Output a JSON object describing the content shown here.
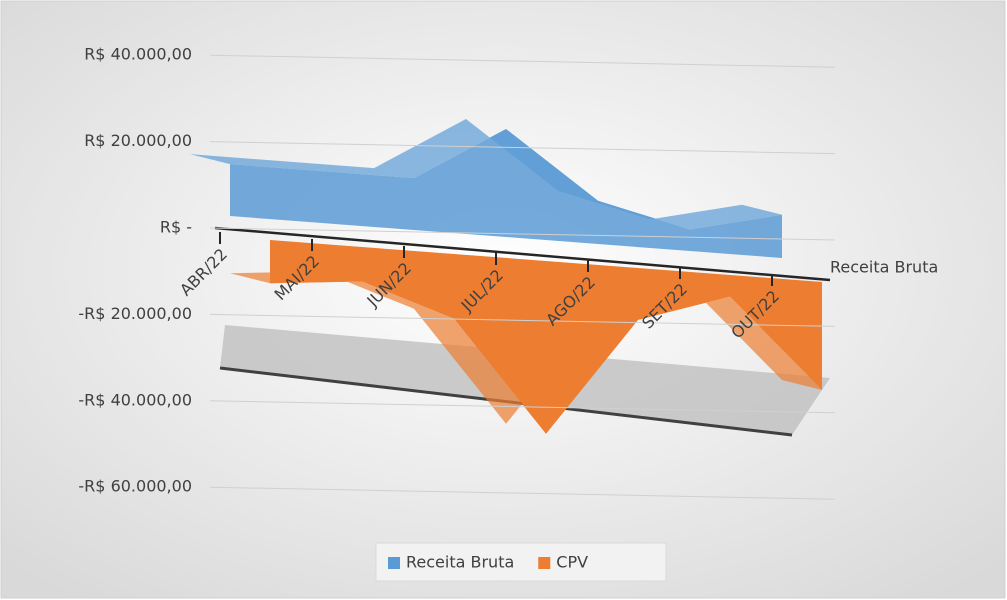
{
  "chart_data": {
    "type": "area3d",
    "categories": [
      "ABR/22",
      "MAI/22",
      "JUN/22",
      "JUL/22",
      "AGO/22",
      "SET/22",
      "OUT/22"
    ],
    "series": [
      {
        "name": "Receita Bruta",
        "color": "#5b9bd5",
        "values": [
          12000,
          12000,
          12000,
          25000,
          10000,
          5000,
          10000
        ]
      },
      {
        "name": "CPV",
        "color": "#ed7d31",
        "values": [
          -10000,
          -8000,
          -15000,
          -40000,
          -12000,
          -5000,
          -25000
        ]
      }
    ],
    "depth_label": "Receita Bruta",
    "ylim": [
      -60000,
      40000
    ],
    "yticks": [
      {
        "value": -60000,
        "label": "-R$ 60.000,00"
      },
      {
        "value": -40000,
        "label": "-R$ 40.000,00"
      },
      {
        "value": -20000,
        "label": "-R$ 20.000,00"
      },
      {
        "value": 0,
        "label": "R$ -"
      },
      {
        "value": 20000,
        "label": "R$ 20.000,00"
      },
      {
        "value": 40000,
        "label": "R$ 40.000,00"
      }
    ],
    "grid": true
  }
}
